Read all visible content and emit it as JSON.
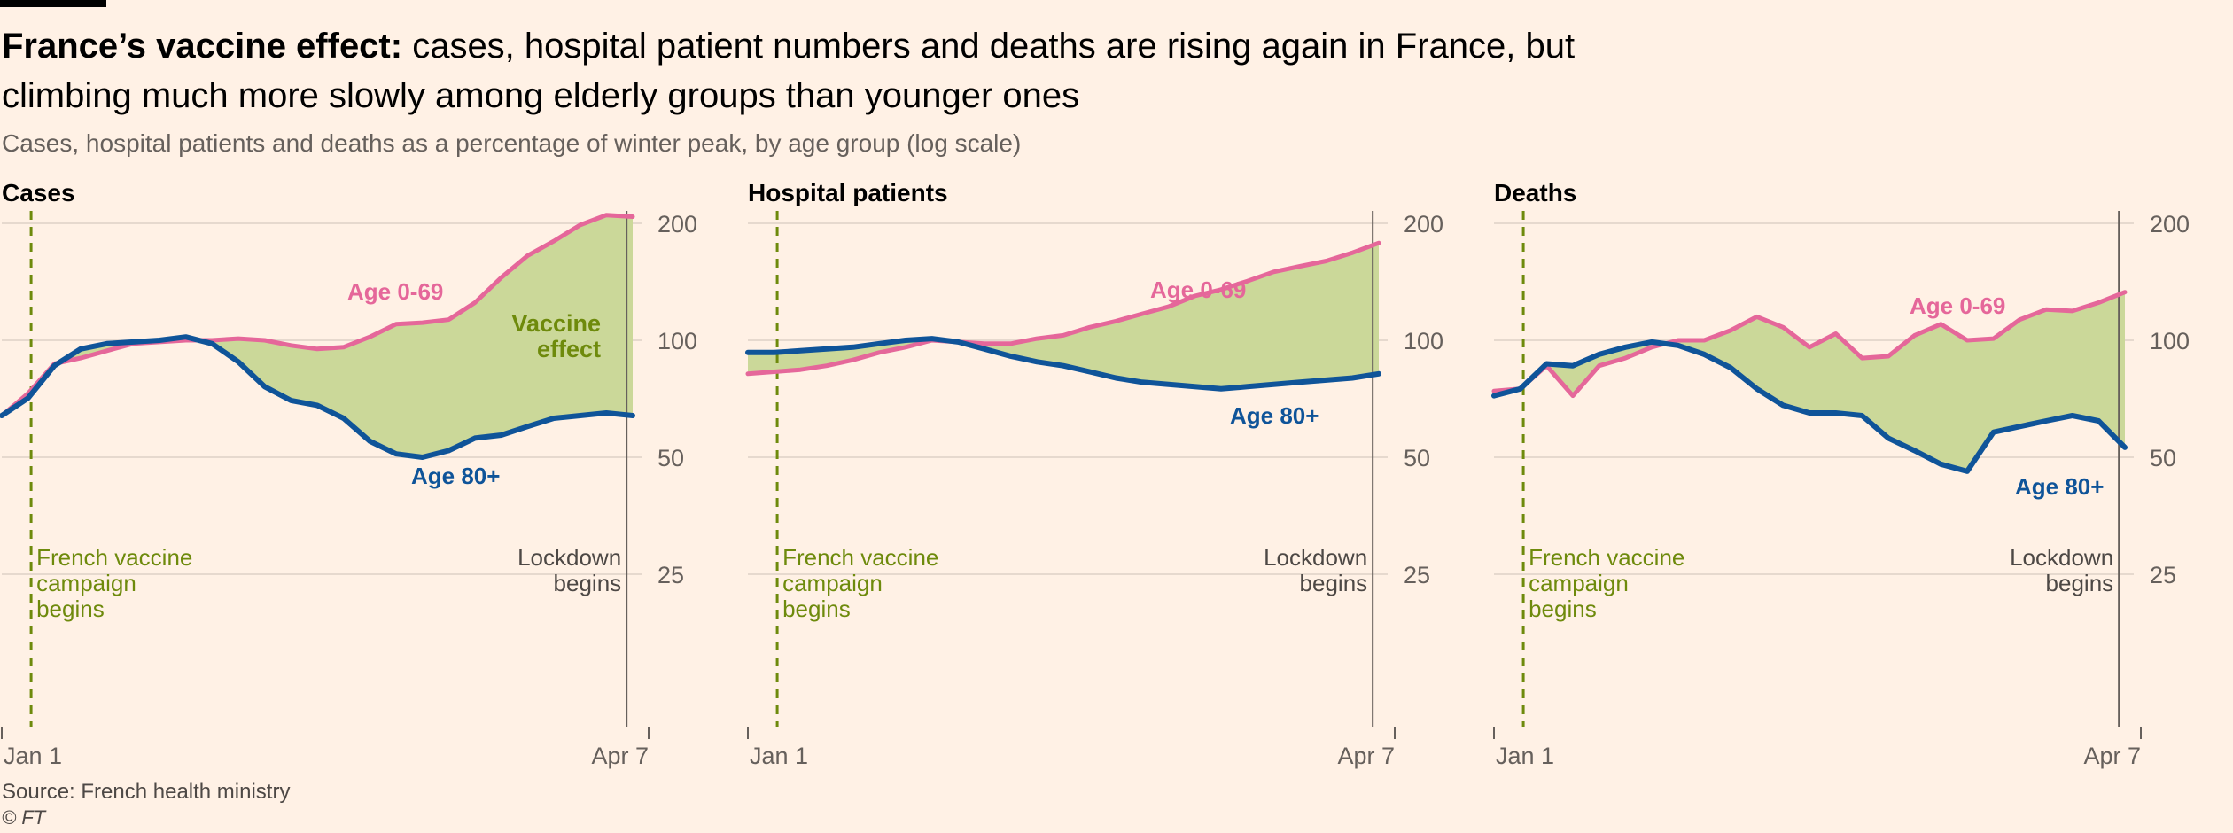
{
  "header": {
    "title_bold": "France’s vaccine effect:",
    "title_rest": " cases, hospital patient numbers and deaths are rising again in France, but climbing much more slowly among elderly groups than younger ones",
    "subtitle": "Cases, hospital patients and deaths as a percentage of winter peak, by age group (log scale)"
  },
  "footer": {
    "source": "Source: French health ministry",
    "copyright": "© FT"
  },
  "colors": {
    "young": "#e5679a",
    "old": "#0f5499",
    "fill": "#cbd899",
    "vaccine": "#6e8a0c",
    "grid": "#e6d9ce",
    "axis": "#66605c"
  },
  "annotations": {
    "vaccine_line": [
      "French vaccine",
      "campaign",
      "begins"
    ],
    "lockdown_line": [
      "Lockdown",
      "begins"
    ],
    "vaccine_effect": [
      "Vaccine",
      "effect"
    ]
  },
  "chart_data": [
    {
      "type": "line",
      "panel_title": "Cases",
      "x_range": [
        "Jan 1",
        "Apr 7"
      ],
      "x_ticks": [
        "Jan 1",
        "Apr 7"
      ],
      "y_scale": "log",
      "y_ticks": [
        200,
        100,
        50,
        25
      ],
      "ylim": [
        12,
        210
      ],
      "x_days": [
        0,
        4,
        8,
        12,
        16,
        20,
        24,
        28,
        32,
        36,
        40,
        44,
        48,
        52,
        56,
        60,
        64,
        68,
        72,
        76,
        80,
        84,
        88,
        92,
        96
      ],
      "series": [
        {
          "name": "Age 0-69",
          "values": [
            64,
            73,
            87,
            90,
            94,
            98,
            99,
            100,
            100,
            101,
            100,
            97,
            95,
            96,
            102,
            110,
            111,
            113,
            125,
            145,
            165,
            180,
            198,
            210,
            208
          ]
        },
        {
          "name": "Age 80+",
          "values": [
            64,
            71,
            86,
            95,
            98,
            99,
            100,
            102,
            98,
            88,
            76,
            70,
            68,
            63,
            55,
            51,
            50,
            52,
            56,
            57,
            60,
            63,
            64,
            65,
            64
          ]
        }
      ]
    },
    {
      "type": "line",
      "panel_title": "Hospital patients",
      "x_range": [
        "Jan 1",
        "Apr 7"
      ],
      "x_ticks": [
        "Jan 1",
        "Apr 7"
      ],
      "y_scale": "log",
      "y_ticks": [
        200,
        100,
        50,
        25
      ],
      "ylim": [
        12,
        210
      ],
      "x_days": [
        0,
        4,
        8,
        12,
        16,
        20,
        24,
        28,
        32,
        36,
        40,
        44,
        48,
        52,
        56,
        60,
        64,
        68,
        72,
        76,
        80,
        84,
        88,
        92,
        96
      ],
      "series": [
        {
          "name": "Age 0-69",
          "values": [
            82,
            83,
            84,
            86,
            89,
            93,
            96,
            100,
            99,
            98,
            98,
            101,
            103,
            108,
            112,
            117,
            122,
            130,
            135,
            142,
            150,
            155,
            160,
            168,
            178
          ]
        },
        {
          "name": "Age 80+",
          "values": [
            93,
            93,
            94,
            95,
            96,
            98,
            100,
            101,
            99,
            95,
            91,
            88,
            86,
            83,
            80,
            78,
            77,
            76,
            75,
            76,
            77,
            78,
            79,
            80,
            82
          ]
        }
      ]
    },
    {
      "type": "line",
      "panel_title": "Deaths",
      "x_range": [
        "Jan 1",
        "Apr 7"
      ],
      "x_ticks": [
        "Jan 1",
        "Apr 7"
      ],
      "y_scale": "log",
      "y_ticks": [
        200,
        100,
        50,
        25
      ],
      "ylim": [
        12,
        210
      ],
      "x_days": [
        0,
        4,
        8,
        12,
        16,
        20,
        24,
        28,
        32,
        36,
        40,
        44,
        48,
        52,
        56,
        60,
        64,
        68,
        72,
        76,
        80,
        84,
        88,
        92,
        96
      ],
      "series": [
        {
          "name": "Age 0-69",
          "values": [
            74,
            75,
            86,
            72,
            86,
            90,
            96,
            100,
            100,
            106,
            115,
            108,
            96,
            104,
            90,
            91,
            103,
            110,
            100,
            101,
            113,
            120,
            119,
            125,
            133
          ]
        },
        {
          "name": "Age 80+",
          "values": [
            72,
            75,
            87,
            86,
            92,
            96,
            99,
            97,
            92,
            85,
            75,
            68,
            65,
            65,
            64,
            56,
            52,
            48,
            46,
            58,
            60,
            62,
            64,
            62,
            53
          ]
        }
      ]
    }
  ]
}
